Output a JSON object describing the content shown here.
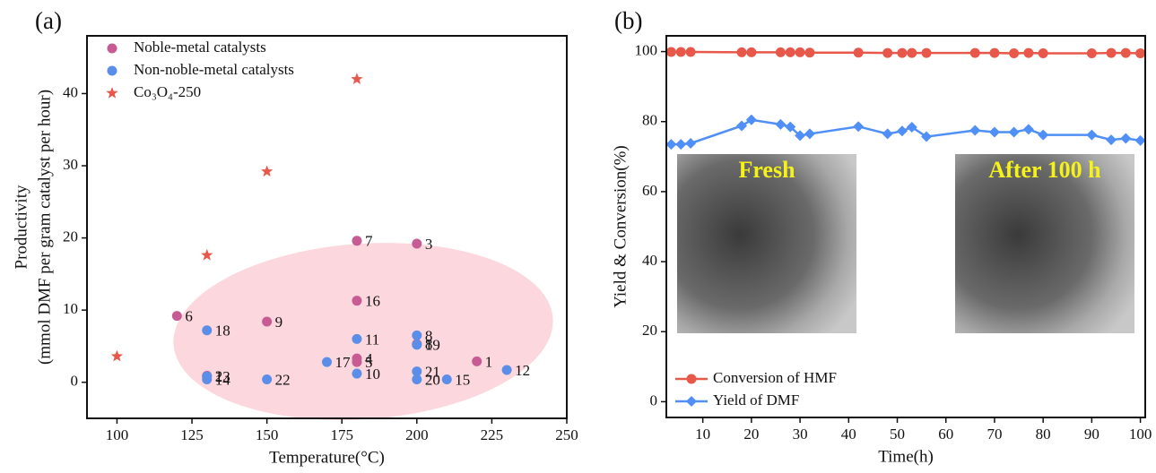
{
  "chart_data": [
    {
      "type": "scatter",
      "panel_label": "(a)",
      "x_label": "Temperature(°C)",
      "y_label": [
        "Productivity",
        "(mmol DMF per gram catalyst per hour)"
      ],
      "xlim": [
        90,
        250
      ],
      "xticks": [
        100,
        125,
        150,
        175,
        200,
        225,
        250
      ],
      "ylim": [
        -5,
        48
      ],
      "yticks": [
        0,
        10,
        20,
        30,
        40
      ],
      "legend": "upper left",
      "series": [
        {
          "name": "Noble-metal catalysts",
          "color": "#c75b93",
          "marker": "circle",
          "label_color": "#c75b93",
          "x": [
            120,
            150,
            180,
            200,
            180,
            180,
            180,
            200,
            220,
            130
          ],
          "values": [
            9.2,
            8.4,
            19.6,
            19.2,
            11.3,
            3.3,
            2.8,
            5.3,
            2.9,
            0.9
          ],
          "labels": [
            "6",
            "9",
            "7",
            "3",
            "16",
            "4",
            "5",
            "8",
            "1",
            "2"
          ]
        },
        {
          "name": "Non-noble-metal catalysts",
          "color": "#5b8ee8",
          "marker": "circle",
          "label_color": "#1aa3d6",
          "x": [
            130,
            130,
            130,
            150,
            170,
            180,
            180,
            200,
            200,
            200,
            200,
            210,
            230
          ],
          "values": [
            7.2,
            0.8,
            0.4,
            0.4,
            2.8,
            6.0,
            1.2,
            6.5,
            5.2,
            1.5,
            0.4,
            0.4,
            1.7
          ],
          "labels": [
            "18",
            "13",
            "14",
            "22",
            "17",
            "11",
            "10",
            "8",
            "19",
            "21",
            "20",
            "15",
            "12"
          ]
        },
        {
          "name": "Co₃O₄-250",
          "color": "#e8584a",
          "marker": "star",
          "x": [
            100,
            130,
            150,
            180
          ],
          "values": [
            3.6,
            17.6,
            29.2,
            42.0
          ]
        }
      ]
    },
    {
      "type": "line",
      "panel_label": "(b)",
      "x_label": "Time(h)",
      "y_label": [
        "Yield & Conversion(%)"
      ],
      "xlim": [
        2.5,
        101
      ],
      "xticks": [
        10,
        20,
        30,
        40,
        50,
        60,
        70,
        80,
        90,
        100
      ],
      "ylim": [
        -4.5,
        104.5
      ],
      "yticks": [
        0,
        20,
        40,
        60,
        80,
        100
      ],
      "legend": "lower left",
      "x": [
        3.5,
        5.5,
        7.5,
        18,
        20,
        26,
        28,
        30,
        32,
        42,
        48,
        51,
        53,
        56,
        66,
        70,
        74,
        77,
        80,
        90,
        94,
        97,
        100
      ],
      "series": [
        {
          "name": "Conversion of HMF",
          "color": "#e8584a",
          "marker": "circle",
          "values": [
            99.9,
            99.9,
            99.9,
            99.8,
            99.8,
            99.8,
            99.8,
            99.8,
            99.7,
            99.7,
            99.6,
            99.6,
            99.6,
            99.6,
            99.6,
            99.6,
            99.5,
            99.6,
            99.5,
            99.5,
            99.6,
            99.6,
            99.5
          ]
        },
        {
          "name": "Yield of DMF",
          "color": "#4f8ff7",
          "marker": "diamond",
          "values": [
            73.5,
            73.5,
            73.8,
            78.8,
            80.5,
            79.2,
            78.5,
            76.0,
            76.5,
            78.6,
            76.5,
            77.3,
            78.4,
            75.7,
            77.5,
            77.0,
            77.0,
            77.8,
            76.2,
            76.2,
            74.8,
            75.2,
            74.6
          ]
        }
      ],
      "insets": [
        {
          "label": "Fresh"
        },
        {
          "label": "After 100 h"
        }
      ]
    }
  ]
}
